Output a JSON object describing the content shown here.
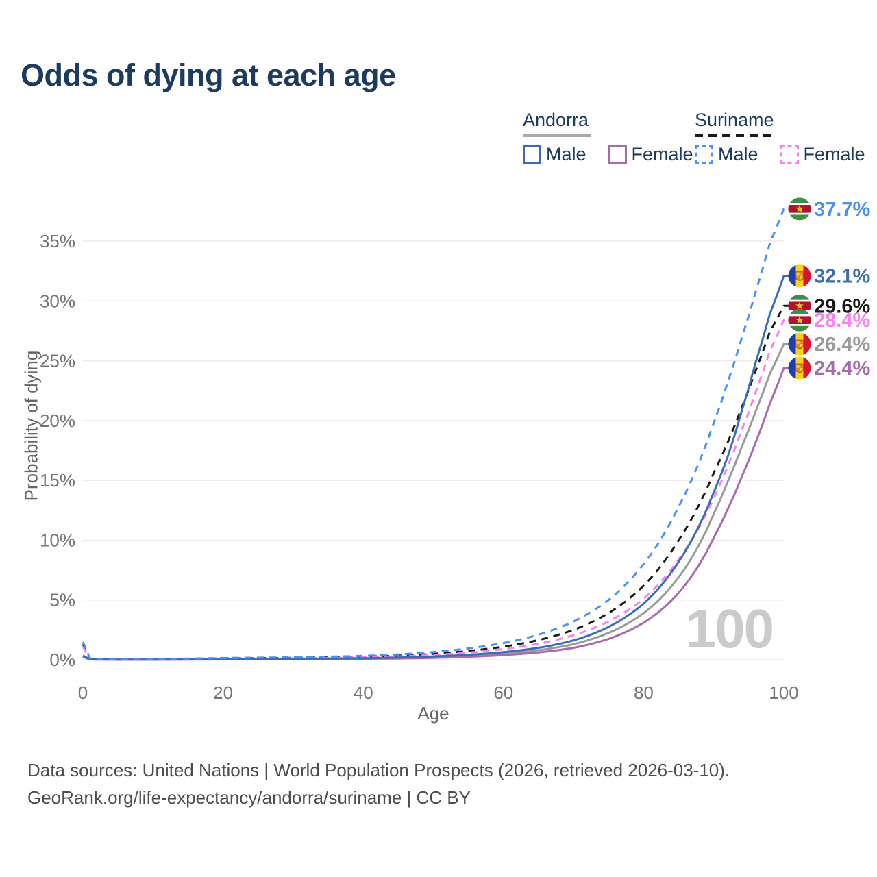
{
  "page": {
    "title": "Odds of dying at each age"
  },
  "legend": {
    "groups": [
      {
        "country": "Andorra",
        "style": "solid",
        "underline_color": "#a9a9a9",
        "items": [
          {
            "label": "Male",
            "color": "#3a6db5"
          },
          {
            "label": "Female",
            "color": "#a66bab"
          }
        ]
      },
      {
        "country": "Suriname",
        "style": "dashed",
        "underline_color": "#1a1a1a",
        "items": [
          {
            "label": "Male",
            "color": "#4a90f7"
          },
          {
            "label": "Female",
            "color": "#fb7ff2"
          }
        ]
      }
    ]
  },
  "axes": {
    "x_label": "Age",
    "y_label": "Probability of dying"
  },
  "watermark": "100",
  "footer": {
    "line1": "Data sources: United Nations | World Population Prospects (2026, retrieved 2026-03-10).",
    "line2": "GeoRank.org/life-expectancy/andorra/suriname | CC BY"
  },
  "chart_data": {
    "type": "line",
    "title": "Odds of dying at each age",
    "xlabel": "Age",
    "ylabel": "Probability of dying",
    "xlim": [
      0,
      100
    ],
    "ylim_pct": [
      0,
      38.5
    ],
    "grid": "horizontal",
    "x_ticks": [
      0,
      20,
      40,
      60,
      80,
      100
    ],
    "y_ticks": [
      "0%",
      "5%",
      "10%",
      "15%",
      "20%",
      "25%",
      "30%",
      "35%"
    ],
    "ages": [
      0,
      1,
      2,
      5,
      10,
      15,
      20,
      25,
      30,
      35,
      40,
      45,
      50,
      55,
      60,
      65,
      70,
      75,
      80,
      85,
      90,
      92,
      94,
      96,
      98,
      100
    ],
    "series": [
      {
        "key": "andorra_both",
        "name": "Andorra (both sexes)",
        "country": "Andorra",
        "style": "solid",
        "color": "#9a9a9a",
        "end_label": "26.4%",
        "values_pct": [
          0.3,
          0.035,
          0.025,
          0.02,
          0.02,
          0.025,
          0.04,
          0.05,
          0.06,
          0.08,
          0.1,
          0.15,
          0.22,
          0.33,
          0.51,
          0.8,
          1.3,
          2.25,
          3.9,
          6.9,
          12.2,
          14.9,
          17.8,
          20.8,
          23.9,
          26.4
        ]
      },
      {
        "key": "suriname_both",
        "name": "Suriname (both sexes)",
        "country": "Suriname",
        "style": "dashed",
        "color": "#1a1a1a",
        "end_label": "29.6%",
        "values_pct": [
          1.3,
          0.1,
          0.07,
          0.05,
          0.05,
          0.08,
          0.11,
          0.14,
          0.16,
          0.2,
          0.26,
          0.35,
          0.5,
          0.74,
          1.1,
          1.65,
          2.5,
          3.9,
          6.2,
          10.0,
          15.6,
          18.2,
          21.1,
          24.2,
          27.4,
          29.6
        ]
      },
      {
        "key": "andorra_female",
        "name": "Andorra Female",
        "country": "Andorra",
        "style": "solid",
        "color": "#a66bab",
        "end_label": "24.4%",
        "values_pct": [
          0.25,
          0.03,
          0.02,
          0.015,
          0.015,
          0.02,
          0.03,
          0.04,
          0.05,
          0.06,
          0.08,
          0.11,
          0.16,
          0.25,
          0.39,
          0.62,
          1.0,
          1.75,
          3.1,
          5.6,
          10.2,
          12.6,
          15.3,
          18.2,
          21.4,
          24.4
        ]
      },
      {
        "key": "suriname_female",
        "name": "Suriname Female",
        "country": "Suriname",
        "style": "dashed",
        "color": "#fb7ff2",
        "end_label": "28.4%",
        "values_pct": [
          1.1,
          0.09,
          0.06,
          0.04,
          0.04,
          0.06,
          0.08,
          0.1,
          0.12,
          0.15,
          0.2,
          0.28,
          0.4,
          0.6,
          0.9,
          1.35,
          2.05,
          3.2,
          5.1,
          8.4,
          13.5,
          16.2,
          19.2,
          22.4,
          25.8,
          28.4
        ]
      },
      {
        "key": "andorra_male",
        "name": "Andorra Male",
        "country": "Andorra",
        "style": "solid",
        "color": "#3a6db5",
        "end_label": "32.1%",
        "values_pct": [
          0.35,
          0.04,
          0.03,
          0.02,
          0.02,
          0.03,
          0.05,
          0.06,
          0.08,
          0.1,
          0.13,
          0.19,
          0.28,
          0.42,
          0.64,
          1.0,
          1.62,
          2.75,
          4.7,
          8.2,
          14.0,
          17.0,
          20.8,
          24.9,
          28.9,
          32.1
        ]
      },
      {
        "key": "suriname_male",
        "name": "Suriname Male",
        "country": "Suriname",
        "style": "dashed",
        "color": "#4a90f7",
        "end_label": "37.7%",
        "values_pct": [
          1.5,
          0.12,
          0.08,
          0.06,
          0.06,
          0.1,
          0.15,
          0.18,
          0.21,
          0.26,
          0.33,
          0.45,
          0.65,
          0.95,
          1.4,
          2.1,
          3.2,
          5.0,
          8.0,
          12.8,
          19.8,
          23.2,
          26.9,
          30.8,
          34.8,
          37.7
        ]
      }
    ],
    "end_labels": [
      {
        "text": "37.7%",
        "value_pct": 37.7,
        "series": "suriname_male",
        "flag": "suriname",
        "color": "#4a90f7"
      },
      {
        "text": "32.1%",
        "value_pct": 32.1,
        "series": "andorra_male",
        "flag": "andorra",
        "color": "#3a6db5"
      },
      {
        "text": "29.6%",
        "value_pct": 29.6,
        "series": "suriname_both",
        "flag": "suriname",
        "color": "#1a1a1a"
      },
      {
        "text": "28.4%",
        "value_pct": 28.4,
        "series": "suriname_female",
        "flag": "suriname",
        "color": "#fb7ff2"
      },
      {
        "text": "26.4%",
        "value_pct": 26.4,
        "series": "andorra_both",
        "flag": "andorra",
        "color": "#9a9a9a"
      },
      {
        "text": "24.4%",
        "value_pct": 24.4,
        "series": "andorra_female",
        "flag": "andorra",
        "color": "#a66bab"
      }
    ]
  }
}
